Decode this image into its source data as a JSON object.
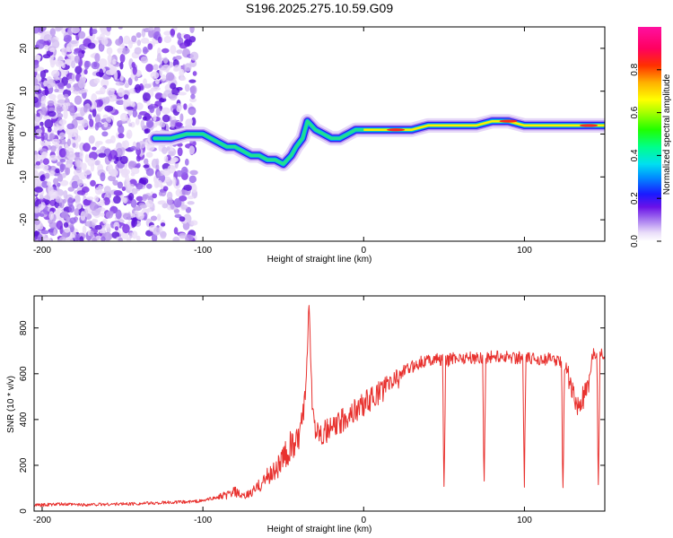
{
  "title": "S196.2025.275.10.59.G09",
  "chart_data": [
    {
      "type": "heatmap",
      "xlabel": "Height of straight line (km)",
      "ylabel": "Frequency (Hz)",
      "xlim": [
        -205,
        150
      ],
      "ylim": [
        -25,
        25
      ],
      "x_ticks": [
        -200,
        -100,
        0,
        100
      ],
      "y_ticks": [
        20,
        10,
        0,
        -10,
        -20
      ],
      "colorbar": {
        "label": "Normalized spectral amplitude",
        "range": [
          0,
          1
        ],
        "ticks": [
          "0.0",
          "0.2",
          "0.4",
          "0.6",
          "0.8"
        ]
      },
      "ridge": {
        "x": [
          -130,
          -120,
          -110,
          -100,
          -95,
          -90,
          -85,
          -80,
          -75,
          -70,
          -65,
          -60,
          -55,
          -50,
          -45,
          -42,
          -38,
          -35,
          -30,
          -25,
          -20,
          -15,
          -10,
          -5,
          0,
          10,
          20,
          30,
          40,
          50,
          60,
          70,
          80,
          90,
          100,
          110,
          120,
          130,
          140,
          150
        ],
        "y": [
          -1,
          -1,
          0,
          0,
          -1,
          -2,
          -3,
          -3,
          -4,
          -5,
          -5,
          -6,
          -6,
          -7,
          -5,
          -3,
          -1,
          3,
          1,
          0,
          -1,
          -1,
          0,
          1,
          1,
          1,
          1,
          1,
          2,
          2,
          2,
          2,
          3,
          3,
          2,
          2,
          2,
          2,
          2,
          2
        ]
      }
    },
    {
      "type": "line",
      "xlabel": "Height of straight line (km)",
      "ylabel": "SNR (10 * v/v)",
      "xlim": [
        -205,
        150
      ],
      "ylim": [
        0,
        940
      ],
      "x_ticks": [
        -200,
        -100,
        0,
        100
      ],
      "y_ticks": [
        0,
        200,
        400,
        600,
        800
      ],
      "series": [
        {
          "name": "SNR",
          "color": "#e8312e",
          "x": [
            -205,
            -190,
            -175,
            -160,
            -145,
            -130,
            -120,
            -110,
            -100,
            -95,
            -90,
            -85,
            -80,
            -75,
            -70,
            -65,
            -60,
            -55,
            -50,
            -45,
            -40,
            -36,
            -34,
            -33,
            -32,
            -30,
            -28,
            -25,
            -20,
            -15,
            -10,
            -5,
            0,
            5,
            10,
            15,
            20,
            25,
            30,
            35,
            40,
            45,
            49,
            50,
            51,
            55,
            60,
            65,
            70,
            74,
            75,
            76,
            80,
            85,
            90,
            95,
            99,
            100,
            101,
            105,
            110,
            115,
            120,
            123,
            124,
            125,
            128,
            131,
            133,
            135,
            137,
            140,
            142,
            145,
            146,
            147,
            148,
            150
          ],
          "y": [
            25,
            30,
            28,
            30,
            32,
            35,
            38,
            40,
            45,
            55,
            60,
            70,
            85,
            60,
            80,
            110,
            150,
            180,
            230,
            280,
            320,
            500,
            920,
            700,
            460,
            370,
            360,
            340,
            360,
            380,
            420,
            440,
            470,
            490,
            520,
            550,
            580,
            610,
            630,
            650,
            660,
            665,
            660,
            110,
            650,
            670,
            670,
            670,
            670,
            670,
            110,
            670,
            675,
            675,
            675,
            670,
            670,
            100,
            665,
            665,
            665,
            665,
            660,
            650,
            110,
            640,
            580,
            490,
            440,
            470,
            500,
            520,
            680,
            690,
            120,
            700,
            690,
            680
          ]
        }
      ]
    }
  ]
}
